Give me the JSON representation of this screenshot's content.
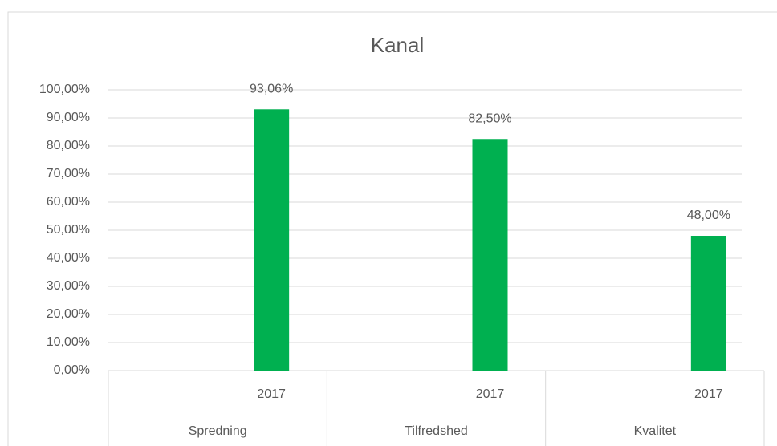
{
  "chart_data": {
    "type": "bar",
    "title": "Kanal",
    "categories": [
      "2017",
      "2017",
      "2017"
    ],
    "groups": [
      "Spredning",
      "Tilfredshed",
      "Kvalitet"
    ],
    "values": [
      93.06,
      82.5,
      48.0
    ],
    "value_labels": [
      "93,06%",
      "82,50%",
      "48,00%"
    ],
    "color": "#00b050",
    "ylim": [
      0,
      100
    ],
    "yticks": [
      {
        "value": 0,
        "label": "0,00%"
      },
      {
        "value": 10,
        "label": "10,00%"
      },
      {
        "value": 20,
        "label": "20,00%"
      },
      {
        "value": 30,
        "label": "30,00%"
      },
      {
        "value": 40,
        "label": "40,00%"
      },
      {
        "value": 50,
        "label": "50,00%"
      },
      {
        "value": 60,
        "label": "60,00%"
      },
      {
        "value": 70,
        "label": "70,00%"
      },
      {
        "value": 80,
        "label": "80,00%"
      },
      {
        "value": 90,
        "label": "90,00%"
      },
      {
        "value": 100,
        "label": "100,00%"
      }
    ],
    "grid": true
  }
}
